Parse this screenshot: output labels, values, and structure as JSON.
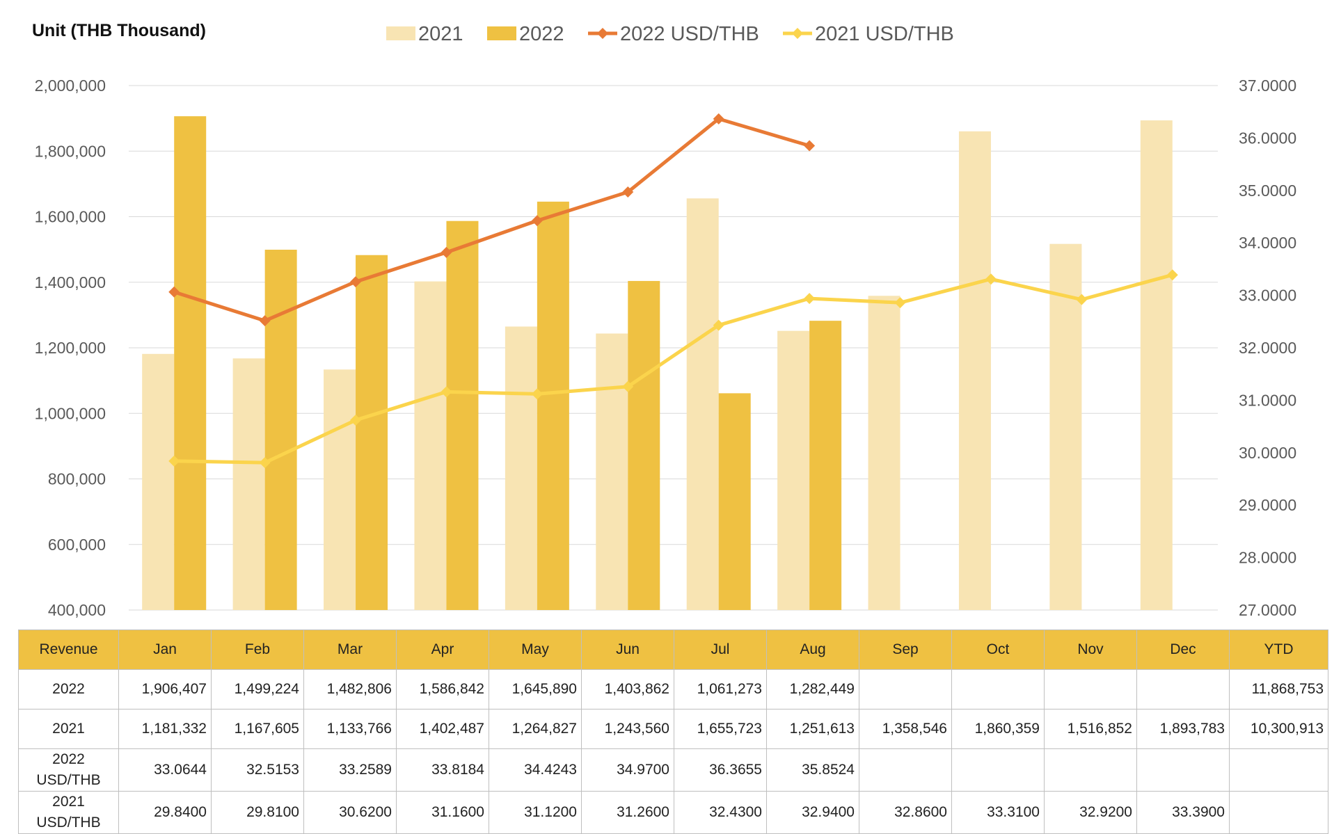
{
  "unit_label": "Unit (THB Thousand)",
  "colors": {
    "bar_2021": "#f8e4b3",
    "bar_2022": "#efc142",
    "line_2022": "#e87a35",
    "line_2021": "#fbd44c",
    "grid": "#d9d9d9",
    "table_header": "#efc142"
  },
  "chart_data": {
    "type": "bar+line",
    "categories": [
      "Jan",
      "Feb",
      "Mar",
      "Apr",
      "May",
      "Jun",
      "Jul",
      "Aug",
      "Sep",
      "Oct",
      "Nov",
      "Dec"
    ],
    "legend": [
      "2021",
      "2022",
      "2022 USD/THB",
      "2021 USD/THB"
    ],
    "legend_position": "top",
    "grid": true,
    "y_left": {
      "ylim": [
        400000,
        2000000
      ],
      "ticks": [
        "2,000,000",
        "1,800,000",
        "1,600,000",
        "1,400,000",
        "1,200,000",
        "1,000,000",
        "800,000",
        "600,000",
        "400,000"
      ]
    },
    "y_right": {
      "ylim": [
        27.0,
        37.0
      ],
      "ticks": [
        "37.0000",
        "36.0000",
        "35.0000",
        "34.0000",
        "33.0000",
        "32.0000",
        "31.0000",
        "30.0000",
        "29.0000",
        "28.0000",
        "27.0000"
      ]
    },
    "series": [
      {
        "name": "2021",
        "kind": "bar",
        "axis": "left",
        "values": [
          1181332,
          1167605,
          1133766,
          1402487,
          1264827,
          1243560,
          1655723,
          1251613,
          1358546,
          1860359,
          1516852,
          1893783
        ]
      },
      {
        "name": "2022",
        "kind": "bar",
        "axis": "left",
        "values": [
          1906407,
          1499224,
          1482806,
          1586842,
          1645890,
          1403862,
          1061273,
          1282449,
          null,
          null,
          null,
          null
        ]
      },
      {
        "name": "2022 USD/THB",
        "kind": "line",
        "axis": "right",
        "values": [
          33.0644,
          32.5153,
          33.2589,
          33.8184,
          34.4243,
          34.97,
          36.3655,
          35.8524,
          null,
          null,
          null,
          null
        ]
      },
      {
        "name": "2021 USD/THB",
        "kind": "line",
        "axis": "right",
        "values": [
          29.84,
          29.81,
          30.62,
          31.16,
          31.12,
          31.26,
          32.43,
          32.94,
          32.86,
          33.31,
          32.92,
          33.39
        ]
      }
    ]
  },
  "table": {
    "headers": [
      "Revenue",
      "Jan",
      "Feb",
      "Mar",
      "Apr",
      "May",
      "Jun",
      "Jul",
      "Aug",
      "Sep",
      "Oct",
      "Nov",
      "Dec",
      "YTD"
    ],
    "rows": [
      {
        "label": "2022",
        "cells": [
          "1,906,407",
          "1,499,224",
          "1,482,806",
          "1,586,842",
          "1,645,890",
          "1,403,862",
          "1,061,273",
          "1,282,449",
          "",
          "",
          "",
          "",
          "11,868,753"
        ]
      },
      {
        "label": "2021",
        "cells": [
          "1,181,332",
          "1,167,605",
          "1,133,766",
          "1,402,487",
          "1,264,827",
          "1,243,560",
          "1,655,723",
          "1,251,613",
          "1,358,546",
          "1,860,359",
          "1,516,852",
          "1,893,783",
          "10,300,913"
        ]
      },
      {
        "label": "2022 USD/THB",
        "cells": [
          "33.0644",
          "32.5153",
          "33.2589",
          "33.8184",
          "34.4243",
          "34.9700",
          "36.3655",
          "35.8524",
          "",
          "",
          "",
          "",
          ""
        ]
      },
      {
        "label": "2021 USD/THB",
        "cells": [
          "29.8400",
          "29.8100",
          "30.6200",
          "31.1600",
          "31.1200",
          "31.2600",
          "32.4300",
          "32.9400",
          "32.8600",
          "33.3100",
          "32.9200",
          "33.3900",
          ""
        ]
      }
    ]
  }
}
